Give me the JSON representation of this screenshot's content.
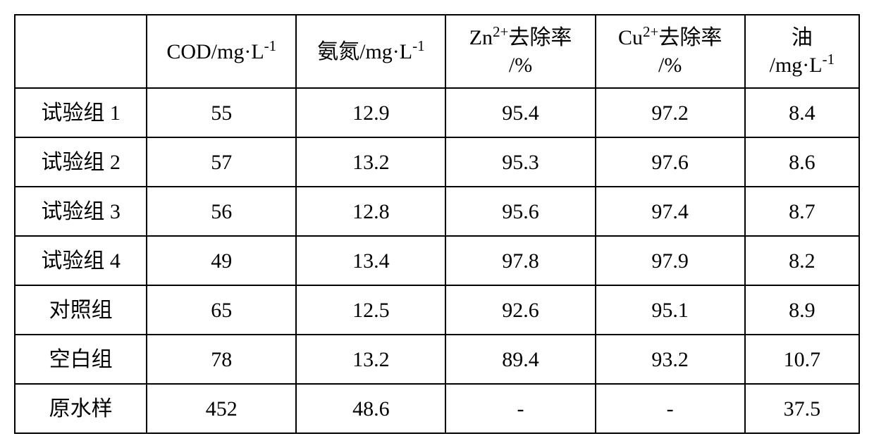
{
  "table": {
    "type": "table",
    "background_color": "#ffffff",
    "border_color": "#000000",
    "text_color": "#000000",
    "font_family": "Times New Roman, SimSun, serif",
    "header_fontsize": 30,
    "cell_fontsize": 30,
    "columns": [
      {
        "label": "",
        "width_pct": 15,
        "align": "center"
      },
      {
        "label_html": "COD/mg·L<sup>-1</sup>",
        "width_pct": 17,
        "align": "center"
      },
      {
        "label_html": "氨氮/mg·L<sup>-1</sup>",
        "width_pct": 17,
        "align": "center"
      },
      {
        "label_html": "Zn<sup>2+</sup>去除率<br>/%",
        "width_pct": 17,
        "align": "center"
      },
      {
        "label_html": "Cu<sup>2+</sup>去除率<br>/%",
        "width_pct": 17,
        "align": "center"
      },
      {
        "label_html": "油<br>/mg·L<sup>-1</sup>",
        "width_pct": 13,
        "align": "center"
      }
    ],
    "rows": [
      {
        "label": "试验组 1",
        "cod": "55",
        "nh": "12.9",
        "zn": "95.4",
        "cu": "97.2",
        "oil": "8.4"
      },
      {
        "label": "试验组 2",
        "cod": "57",
        "nh": "13.2",
        "zn": "95.3",
        "cu": "97.6",
        "oil": "8.6"
      },
      {
        "label": "试验组 3",
        "cod": "56",
        "nh": "12.8",
        "zn": "95.6",
        "cu": "97.4",
        "oil": "8.7"
      },
      {
        "label": "试验组 4",
        "cod": "49",
        "nh": "13.4",
        "zn": "97.8",
        "cu": "97.9",
        "oil": "8.2"
      },
      {
        "label": "对照组",
        "cod": "65",
        "nh": "12.5",
        "zn": "92.6",
        "cu": "95.1",
        "oil": "8.9"
      },
      {
        "label": "空白组",
        "cod": "78",
        "nh": "13.2",
        "zn": "89.4",
        "cu": "93.2",
        "oil": "10.7"
      },
      {
        "label": "原水样",
        "cod": "452",
        "nh": "48.6",
        "zn": "-",
        "cu": "-",
        "oil": "37.5"
      }
    ]
  }
}
